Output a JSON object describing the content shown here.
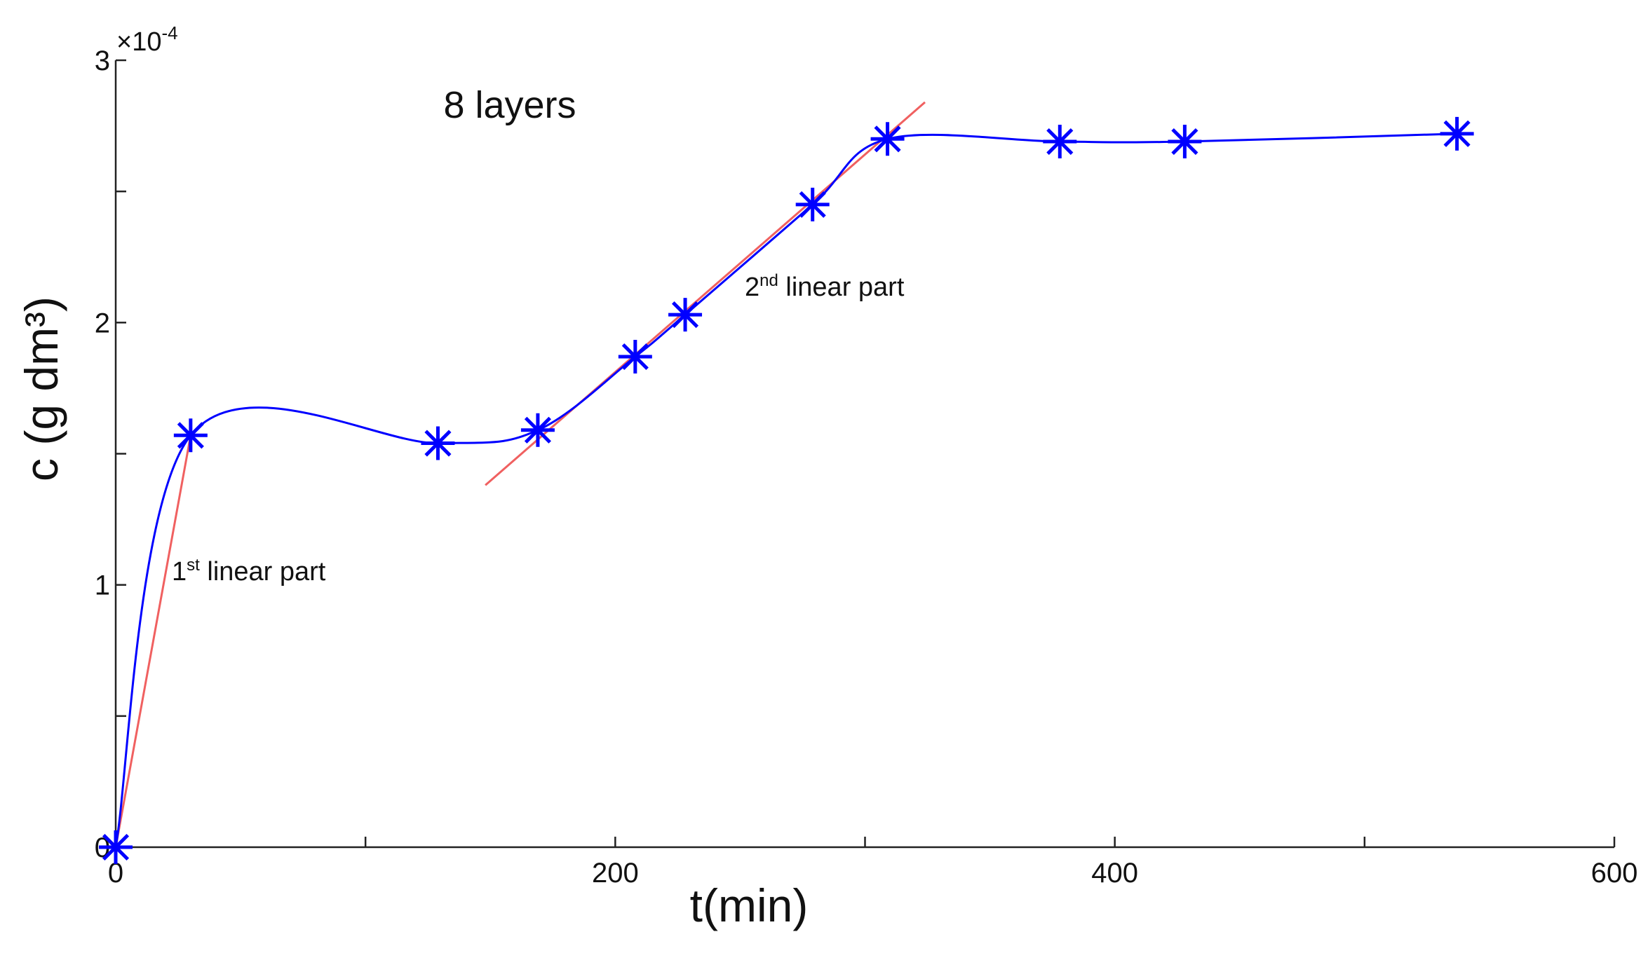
{
  "chart_data": {
    "type": "scatter",
    "title": "8 layers",
    "xlabel": "t(min)",
    "ylabel": "c (g dm³)",
    "y_multiplier": {
      "base": "×10",
      "exponent": "-4"
    },
    "xlim": [
      0,
      600
    ],
    "ylim": [
      0,
      3
    ],
    "xticks": [
      0,
      200,
      400,
      600
    ],
    "yticks": [
      0,
      1,
      2,
      3
    ],
    "xminorticks": [
      100,
      300,
      500
    ],
    "yminorticks": [
      0.5,
      1.5,
      2.5
    ],
    "series": [
      {
        "color": "#0000ff",
        "x": [
          0,
          30,
          129,
          169,
          208,
          228,
          279,
          309,
          378,
          428,
          537
        ],
        "values": [
          0,
          1.57,
          1.54,
          1.59,
          1.87,
          2.03,
          2.45,
          2.7,
          2.69,
          2.69,
          2.72
        ]
      }
    ],
    "fit_lines": [
      {
        "color": "#f06060",
        "x": [
          0,
          30
        ],
        "values": [
          0,
          1.57
        ]
      },
      {
        "color": "#f06060",
        "x": [
          148,
          324
        ],
        "values": [
          1.38,
          2.84
        ]
      }
    ],
    "annotations": [
      {
        "number": "1",
        "suffix": "st",
        "text": " linear part"
      },
      {
        "number": "2",
        "suffix": "nd",
        "text": " linear part"
      }
    ]
  }
}
